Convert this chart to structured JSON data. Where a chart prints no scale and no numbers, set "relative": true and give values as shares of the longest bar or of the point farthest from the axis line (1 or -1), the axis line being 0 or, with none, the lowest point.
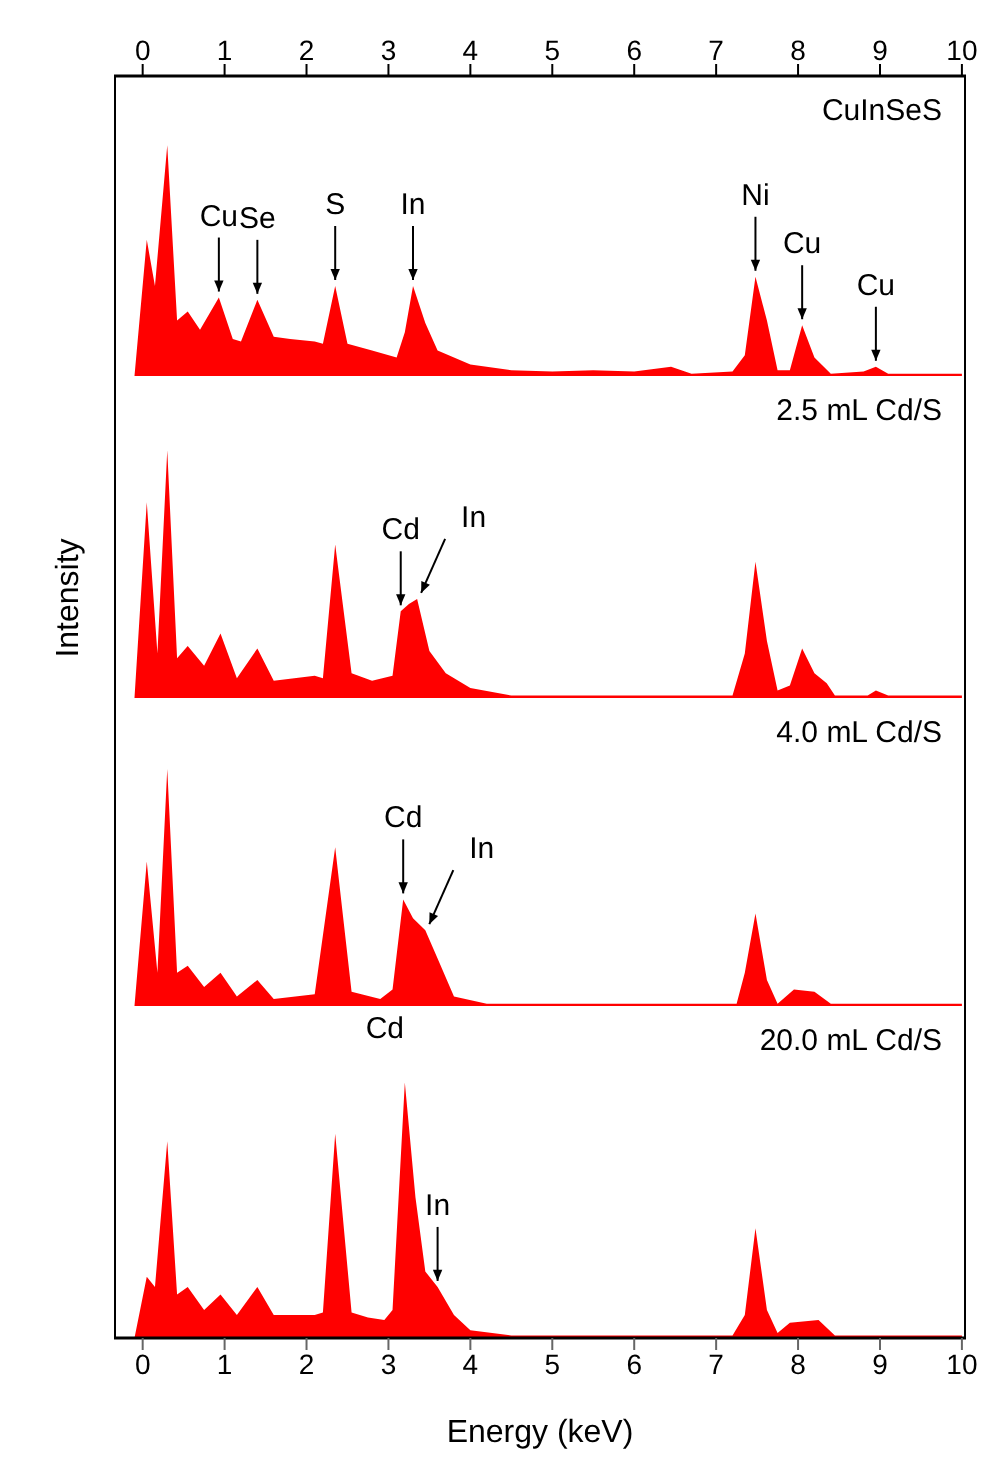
{
  "chart_data": [
    {
      "type": "area",
      "title": "CuInSeS",
      "relative": true,
      "color": "#ff0000",
      "xlim": [
        -0.35,
        10.05
      ],
      "x2lim": [
        -0.35,
        10.05
      ],
      "x2ticks": [
        0,
        1,
        2,
        3,
        4,
        5,
        6,
        7,
        8,
        9,
        10
      ],
      "tick_labels": "x",
      "x": [
        -0.1,
        0.05,
        0.15,
        0.3,
        0.42,
        0.55,
        0.7,
        0.93,
        1.1,
        1.2,
        1.4,
        1.6,
        1.8,
        2.1,
        2.2,
        2.35,
        2.5,
        2.8,
        3.1,
        3.2,
        3.3,
        3.45,
        3.6,
        4.0,
        4.5,
        5.0,
        5.5,
        6.0,
        6.45,
        6.7,
        7.2,
        7.35,
        7.48,
        7.62,
        7.75,
        7.9,
        8.05,
        8.2,
        8.4,
        8.8,
        8.95,
        9.1,
        10.0
      ],
      "values": [
        0,
        0.59,
        0.39,
        1.0,
        0.24,
        0.28,
        0.2,
        0.34,
        0.16,
        0.15,
        0.33,
        0.17,
        0.16,
        0.15,
        0.14,
        0.39,
        0.14,
        0.11,
        0.08,
        0.19,
        0.39,
        0.23,
        0.11,
        0.05,
        0.025,
        0.02,
        0.025,
        0.02,
        0.04,
        0.01,
        0.02,
        0.09,
        0.43,
        0.24,
        0.025,
        0.025,
        0.22,
        0.08,
        0.01,
        0.02,
        0.04,
        0.01,
        0.01
      ],
      "annotations": [
        {
          "text": "Cu",
          "x": 0.93,
          "y": 0.34
        },
        {
          "text": "Se",
          "x": 1.4,
          "y": 0.33
        },
        {
          "text": "S",
          "x": 2.35,
          "y": 0.39
        },
        {
          "text": "In",
          "x": 3.3,
          "y": 0.39
        },
        {
          "text": "Ni",
          "x": 7.48,
          "y": 0.43
        },
        {
          "text": "Cu",
          "x": 8.05,
          "y": 0.22
        },
        {
          "text": "Cu",
          "x": 8.95,
          "y": 0.04
        }
      ]
    },
    {
      "type": "area",
      "title": "2.5 mL Cd/S",
      "ylabel": "Intensity",
      "relative": true,
      "color": "#ff0000",
      "xlim": [
        -0.35,
        10.05
      ],
      "tick_labels": false,
      "x": [
        -0.1,
        0.05,
        0.18,
        0.3,
        0.42,
        0.55,
        0.75,
        0.95,
        1.15,
        1.4,
        1.6,
        2.1,
        2.2,
        2.35,
        2.55,
        2.8,
        3.05,
        3.15,
        3.25,
        3.35,
        3.5,
        3.7,
        4.0,
        4.5,
        6.0,
        7.2,
        7.35,
        7.48,
        7.62,
        7.75,
        7.9,
        8.05,
        8.2,
        8.35,
        8.45,
        8.85,
        8.95,
        9.1,
        10.0
      ],
      "values": [
        0,
        0.79,
        0.18,
        1.0,
        0.16,
        0.21,
        0.13,
        0.26,
        0.08,
        0.2,
        0.07,
        0.09,
        0.08,
        0.62,
        0.1,
        0.07,
        0.09,
        0.35,
        0.38,
        0.4,
        0.19,
        0.1,
        0.04,
        0.01,
        0.01,
        0.01,
        0.18,
        0.55,
        0.23,
        0.03,
        0.05,
        0.2,
        0.1,
        0.06,
        0.01,
        0.01,
        0.03,
        0.01,
        0.01
      ],
      "annotations": [
        {
          "text": "Cd",
          "x": 3.15,
          "y": 0.35
        },
        {
          "text": "In",
          "x": 3.35,
          "y": 0.4
        }
      ]
    },
    {
      "type": "area",
      "title": "4.0 mL Cd/S",
      "relative": true,
      "color": "#ff0000",
      "xlim": [
        -0.35,
        10.05
      ],
      "tick_labels": false,
      "x": [
        -0.1,
        0.05,
        0.18,
        0.3,
        0.42,
        0.55,
        0.75,
        0.95,
        1.15,
        1.4,
        1.6,
        2.1,
        2.35,
        2.55,
        2.9,
        3.05,
        3.18,
        3.3,
        3.45,
        3.6,
        3.8,
        4.2,
        7.25,
        7.35,
        7.48,
        7.62,
        7.75,
        7.95,
        8.2,
        8.4,
        10.0
      ],
      "values": [
        0,
        0.61,
        0.14,
        1.0,
        0.14,
        0.17,
        0.08,
        0.14,
        0.04,
        0.11,
        0.03,
        0.05,
        0.67,
        0.06,
        0.03,
        0.07,
        0.45,
        0.37,
        0.32,
        0.2,
        0.04,
        0.01,
        0.01,
        0.14,
        0.39,
        0.11,
        0.01,
        0.07,
        0.06,
        0.01,
        0.01
      ],
      "annotations": [
        {
          "text": "Cd",
          "x": 3.18,
          "y": 0.45
        },
        {
          "text": "In",
          "x": 3.45,
          "y": 0.32
        }
      ]
    },
    {
      "type": "area",
      "title": "20.0 mL Cd/S",
      "xlabel": "Energy (keV)",
      "relative": true,
      "color": "#ff0000",
      "xlim": [
        -0.35,
        10.05
      ],
      "xticks": [
        0,
        1,
        2,
        3,
        4,
        5,
        6,
        7,
        8,
        9,
        10
      ],
      "tick_labels": "x",
      "x": [
        -0.1,
        0.05,
        0.15,
        0.3,
        0.42,
        0.55,
        0.75,
        0.95,
        1.15,
        1.4,
        1.6,
        2.1,
        2.2,
        2.35,
        2.55,
        2.75,
        2.95,
        3.05,
        3.2,
        3.33,
        3.45,
        3.6,
        3.8,
        4.0,
        4.5,
        7.2,
        7.35,
        7.48,
        7.62,
        7.75,
        7.9,
        8.25,
        8.45,
        10.0
      ],
      "values": [
        0,
        0.24,
        0.2,
        0.77,
        0.17,
        0.2,
        0.11,
        0.17,
        0.09,
        0.2,
        0.09,
        0.09,
        0.1,
        0.8,
        0.1,
        0.08,
        0.07,
        0.11,
        1.0,
        0.55,
        0.26,
        0.2,
        0.09,
        0.03,
        0.01,
        0.01,
        0.09,
        0.43,
        0.11,
        0.02,
        0.06,
        0.07,
        0.01,
        0.01
      ],
      "annotations": [
        {
          "text": "Cd",
          "x": 3.2,
          "y": 1.0
        },
        {
          "text": "In",
          "x": 3.6,
          "y": 0.2
        }
      ]
    }
  ]
}
